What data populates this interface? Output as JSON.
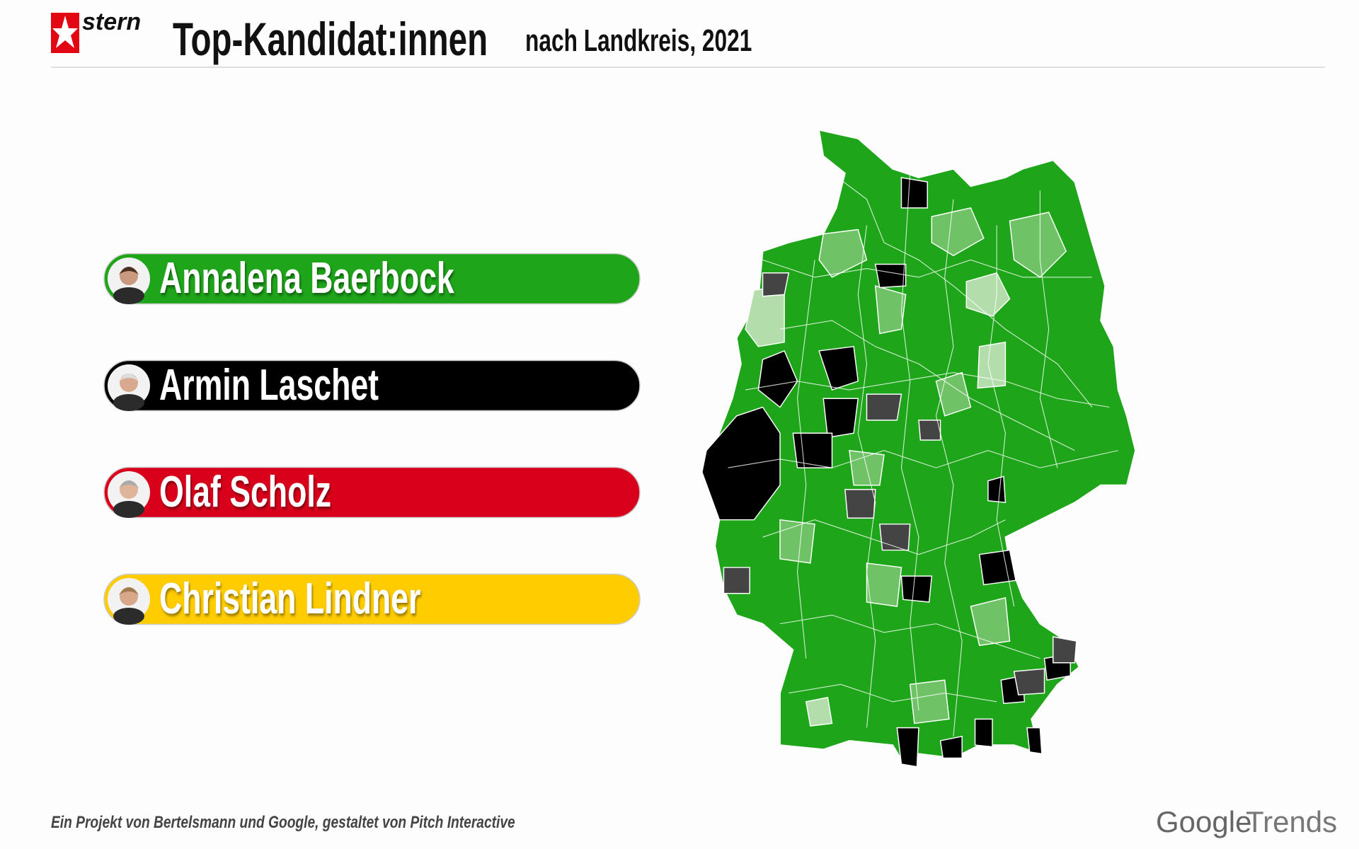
{
  "header": {
    "logo": "stern",
    "title": "Top-Kandidat:innen",
    "subtitle": "nach Landkreis, 2021"
  },
  "legend": [
    {
      "name": "Annalena Baerbock",
      "color": "#1ea51a"
    },
    {
      "name": "Armin Laschet",
      "color": "#000000"
    },
    {
      "name": "Olaf Scholz",
      "color": "#d9001b"
    },
    {
      "name": "Christian Lindner",
      "color": "#ffcc00"
    }
  ],
  "footer": {
    "credit": "Ein Projekt von Bertelsmann und Google, gestaltet von Pitch Interactive",
    "brand_google": "Google",
    "brand_trends": "Trends"
  }
}
